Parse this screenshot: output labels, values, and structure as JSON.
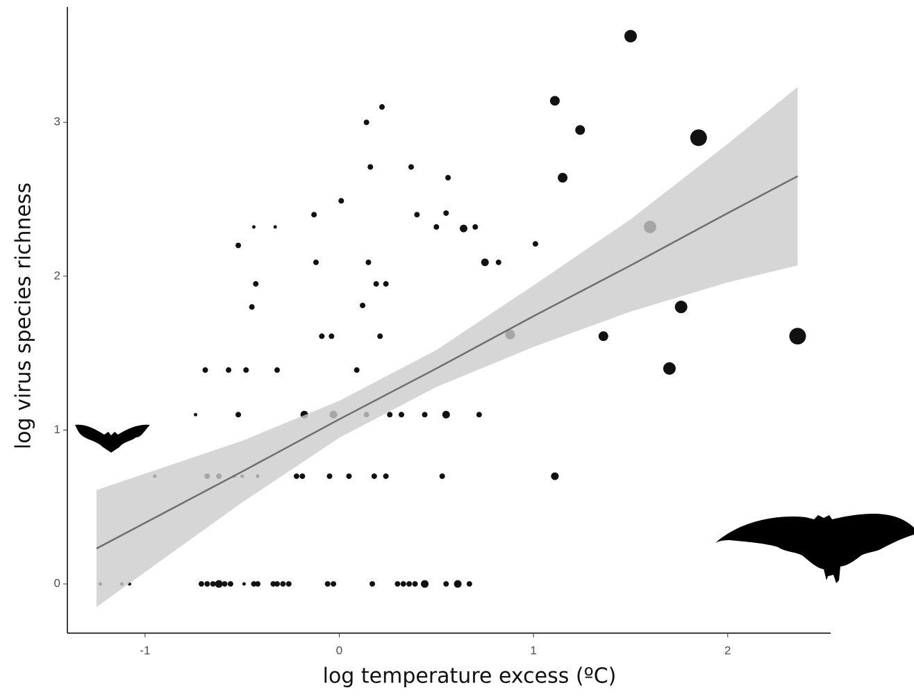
{
  "chart_data": {
    "type": "scatter",
    "x_label": "log temperature excess (ºC)",
    "y_label": "log virus species richness",
    "color": "#111111",
    "x": [
      1.5,
      1.11,
      1.24,
      1.85,
      1.15,
      1.6,
      1.76,
      2.36,
      1.7,
      1.36,
      0.88,
      1.11,
      1.01,
      0.22,
      0.14,
      0.16,
      0.37,
      0.56,
      0.01,
      -0.13,
      0.4,
      0.55,
      0.5,
      0.64,
      0.7,
      -0.44,
      -0.33,
      -0.52,
      -0.12,
      0.15,
      0.75,
      0.82,
      -0.43,
      0.19,
      0.24,
      -0.45,
      0.12,
      -0.09,
      -0.04,
      0.21,
      -0.69,
      -0.57,
      -0.48,
      -0.32,
      0.09,
      -0.74,
      -0.52,
      -0.18,
      -0.03,
      0.14,
      0.26,
      0.32,
      0.44,
      0.55,
      0.72,
      -0.95,
      -0.68,
      -0.62,
      -0.54,
      -0.5,
      -0.42,
      -0.22,
      -0.19,
      -0.05,
      0.05,
      0.18,
      0.24,
      0.53,
      -1.23,
      -1.12,
      -1.08,
      -0.71,
      -0.68,
      -0.65,
      -0.62,
      -0.59,
      -0.56,
      -0.49,
      -0.44,
      -0.42,
      -0.34,
      -0.32,
      -0.29,
      -0.26,
      -0.06,
      -0.03,
      0.17,
      0.3,
      0.33,
      0.36,
      0.39,
      0.44,
      0.55,
      0.61,
      0.67
    ],
    "y": [
      3.56,
      3.14,
      2.95,
      2.9,
      2.64,
      2.32,
      1.8,
      1.61,
      1.4,
      1.61,
      1.62,
      0.7,
      2.21,
      3.1,
      3.0,
      2.71,
      2.71,
      2.64,
      2.49,
      2.4,
      2.4,
      2.41,
      2.32,
      2.31,
      2.32,
      2.32,
      2.32,
      2.2,
      2.09,
      2.09,
      2.09,
      2.09,
      1.95,
      1.95,
      1.95,
      1.8,
      1.81,
      1.61,
      1.61,
      1.61,
      1.39,
      1.39,
      1.39,
      1.39,
      1.39,
      1.1,
      1.1,
      1.1,
      1.1,
      1.1,
      1.1,
      1.1,
      1.1,
      1.1,
      1.1,
      0.7,
      0.7,
      0.7,
      0.7,
      0.7,
      0.7,
      0.7,
      0.7,
      0.7,
      0.7,
      0.7,
      0.7,
      0.7,
      0,
      0,
      0,
      0,
      0,
      0,
      0,
      0,
      0,
      0,
      0,
      0,
      0,
      0,
      0,
      0,
      0,
      0,
      0,
      0,
      0,
      0,
      0,
      0,
      0,
      0,
      0
    ],
    "sizes": [
      4,
      3,
      3,
      5,
      3,
      4,
      4,
      5,
      4,
      3,
      3,
      2,
      1,
      1,
      1,
      1,
      1,
      1,
      1,
      1,
      1,
      1,
      1,
      2,
      1,
      0,
      0,
      1,
      1,
      1,
      2,
      1,
      1,
      1,
      1,
      1,
      1,
      1,
      1,
      1,
      1,
      1,
      1,
      1,
      1,
      0,
      1,
      2,
      2,
      1,
      1,
      1,
      1,
      2,
      1,
      0,
      1,
      1,
      0,
      0,
      0,
      1,
      1,
      1,
      1,
      1,
      1,
      1,
      0,
      0,
      0,
      1,
      1,
      1,
      2,
      1,
      1,
      0,
      1,
      1,
      1,
      1,
      1,
      1,
      1,
      1,
      1,
      1,
      1,
      1,
      1,
      2,
      1,
      2,
      1
    ],
    "fit": {
      "x": [
        -1.25,
        -0.5,
        0,
        0.5,
        1,
        1.5,
        2,
        2.36
      ],
      "y": [
        0.23,
        0.73,
        1.07,
        1.4,
        1.74,
        2.07,
        2.41,
        2.65
      ],
      "lower": [
        -0.15,
        0.53,
        0.95,
        1.28,
        1.54,
        1.77,
        1.96,
        2.07
      ],
      "upper": [
        0.61,
        0.93,
        1.19,
        1.52,
        1.94,
        2.37,
        2.86,
        3.23
      ]
    },
    "xlim": [
      -1.4,
      2.53
    ],
    "ylim": [
      -0.32,
      3.75
    ],
    "xticks": [
      -1,
      0,
      1,
      2
    ],
    "yticks": [
      0,
      1,
      2,
      3
    ]
  }
}
